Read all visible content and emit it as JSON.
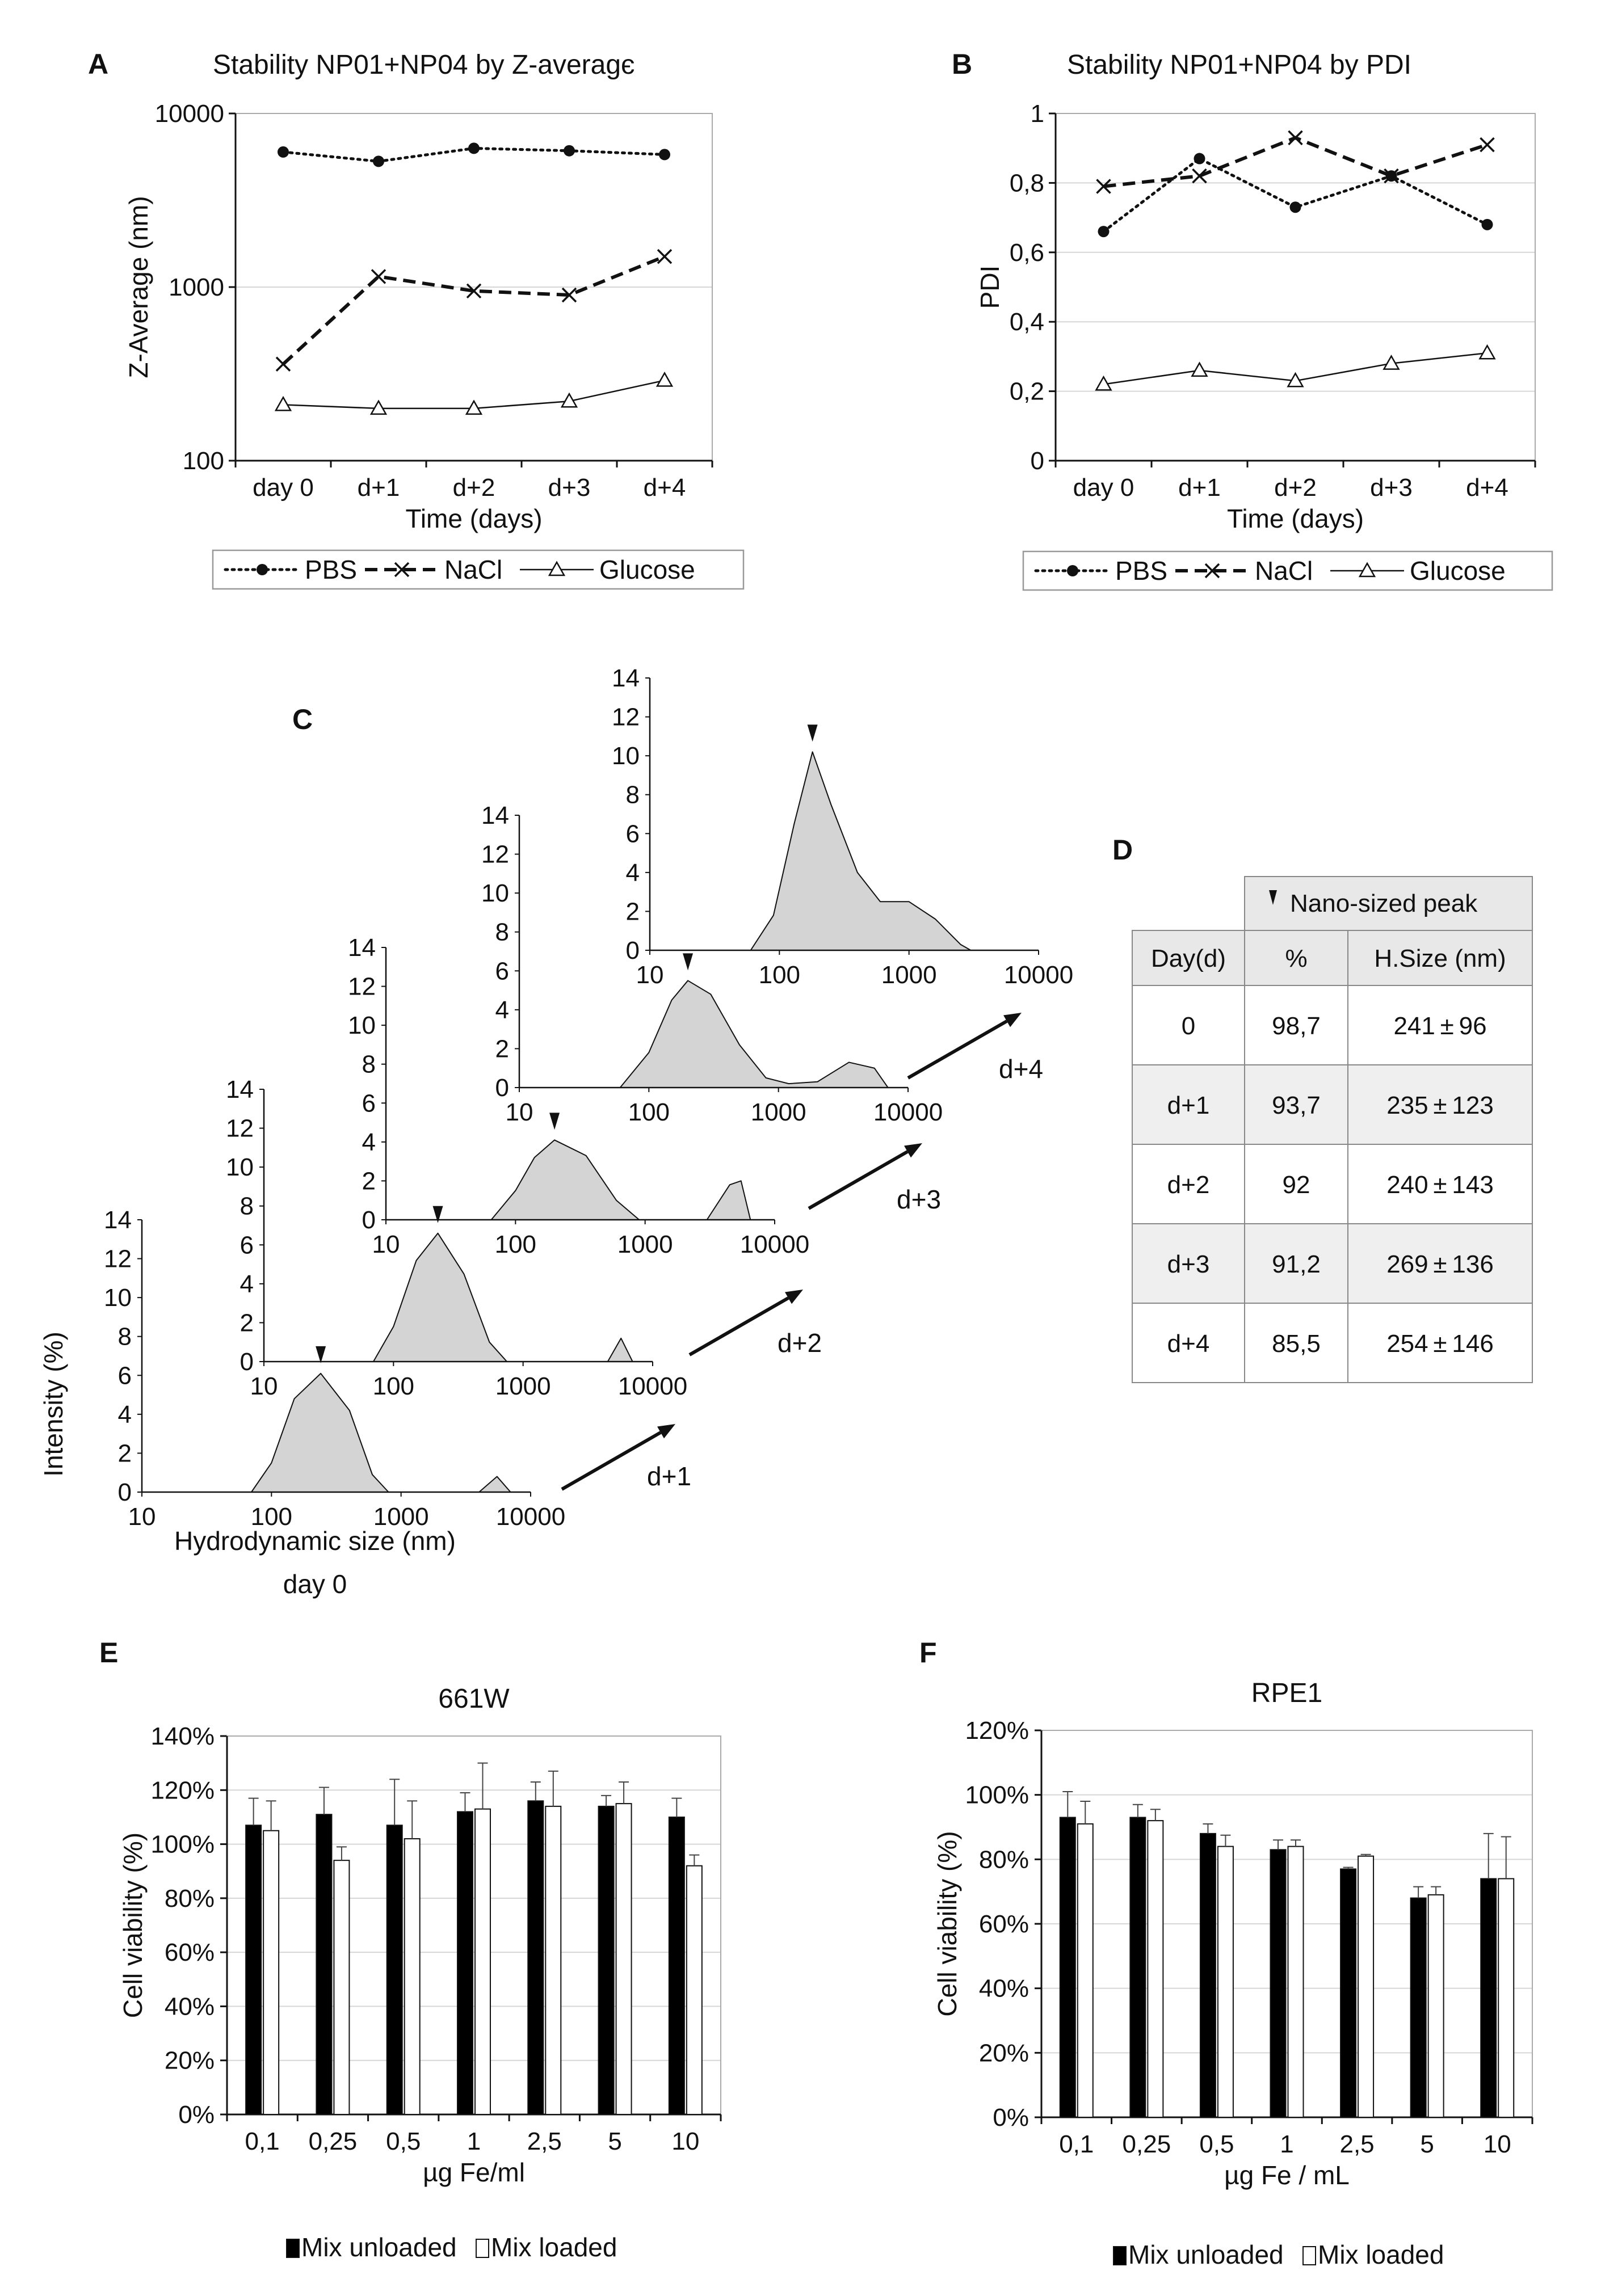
{
  "colors": {
    "ink": "#111111",
    "peak_fill": "#d4d4d4",
    "grid": "#d6d6d6",
    "table_header": "#e8e8e8",
    "bar_dark": "#000000",
    "bar_light": "#ffffff"
  },
  "panels": {
    "A": {
      "letter": "A",
      "title": "Stability NP01+NP04 by Z-averagє"
    },
    "B": {
      "letter": "B",
      "title": "Stability NP01+NP04 by PDI"
    },
    "C": {
      "letter": "C",
      "ylabel": "Intensity (%)",
      "xlabel": "Hydrodynamic size (nm)",
      "day_labels": [
        "day 0",
        "d+1",
        "d+2",
        "d+3",
        "d+4"
      ]
    },
    "D": {
      "letter": "D",
      "group_header": "Nano-sized peak",
      "col_headers": [
        "Day(d)",
        "%",
        "H.Size (nm)"
      ],
      "rows": [
        [
          "0",
          "98,7",
          "241 ± 96"
        ],
        [
          "d+1",
          "93,7",
          "235 ± 123"
        ],
        [
          "d+2",
          "92",
          "240 ± 143"
        ],
        [
          "d+3",
          "91,2",
          "269 ± 136"
        ],
        [
          "d+4",
          "85,5",
          "254 ± 146"
        ]
      ]
    },
    "E": {
      "letter": "E",
      "title": "661W"
    },
    "F": {
      "letter": "F",
      "title": "RPE1"
    }
  },
  "chart_data": [
    {
      "id": "A",
      "type": "line",
      "title": "Stability NP01+NP04 by Z-averagє",
      "xlabel": "Time (days)",
      "ylabel": "Z-Average (nm)",
      "yscale": "log",
      "ylim": [
        100,
        10000
      ],
      "yticks": [
        "100",
        "1000",
        "10000"
      ],
      "categories": [
        "day 0",
        "d+1",
        "d+2",
        "d+3",
        "d+4"
      ],
      "series": [
        {
          "name": "PBS",
          "values": [
            6000,
            5300,
            6300,
            6100,
            5800
          ]
        },
        {
          "name": "NaCl",
          "values": [
            360,
            1150,
            950,
            900,
            1500
          ]
        },
        {
          "name": "Glucose",
          "values": [
            210,
            200,
            200,
            220,
            290
          ]
        }
      ],
      "legend": [
        "PBS",
        "NaCl",
        "Glucose"
      ]
    },
    {
      "id": "B",
      "type": "line",
      "title": "Stability NP01+NP04 by PDI",
      "xlabel": "Time (days)",
      "ylabel": "PDI",
      "ylim": [
        0,
        1
      ],
      "yticks": [
        "0",
        "0,2",
        "0,4",
        "0,6",
        "0,8",
        "1"
      ],
      "categories": [
        "day 0",
        "d+1",
        "d+2",
        "d+3",
        "d+4"
      ],
      "series": [
        {
          "name": "PBS",
          "values": [
            0.66,
            0.87,
            0.73,
            0.82,
            0.68
          ]
        },
        {
          "name": "NaCl",
          "values": [
            0.79,
            0.82,
            0.93,
            0.82,
            0.91
          ]
        },
        {
          "name": "Glucose",
          "values": [
            0.22,
            0.26,
            0.23,
            0.28,
            0.31
          ]
        }
      ],
      "legend": [
        "PBS",
        "NaCl",
        "Glucose"
      ]
    },
    {
      "id": "C",
      "type": "area",
      "xlabel": "Hydrodynamic size (nm)",
      "ylabel": "Intensity (%)",
      "xscale": "log",
      "xlim": [
        10,
        10000
      ],
      "ylim": [
        0,
        14
      ],
      "xticks": [
        "10",
        "100",
        "1000",
        "10000"
      ],
      "yticks": [
        "0",
        "2",
        "4",
        "6",
        "8",
        "10",
        "12",
        "14"
      ],
      "series": [
        {
          "name": "day 0",
          "x": [
            70,
            100,
            150,
            240,
            400,
            600,
            800,
            4000,
            5500,
            7000
          ],
          "y": [
            0,
            1.5,
            4.8,
            6.1,
            4.2,
            0.9,
            0,
            0,
            0.8,
            0
          ]
        },
        {
          "name": "d+1",
          "x": [
            70,
            100,
            150,
            220,
            350,
            550,
            750,
            4500,
            5700,
            7000
          ],
          "y": [
            0,
            1.8,
            5.2,
            6.6,
            4.5,
            1,
            0,
            0,
            1.2,
            0
          ]
        },
        {
          "name": "d+2",
          "x": [
            65,
            100,
            140,
            200,
            350,
            600,
            900,
            3000,
            4500,
            5500,
            6500
          ],
          "y": [
            0,
            1.5,
            3.2,
            4.1,
            3.3,
            1,
            0,
            0,
            1.8,
            2,
            0
          ]
        },
        {
          "name": "d+3",
          "x": [
            60,
            100,
            150,
            200,
            300,
            500,
            800,
            1200,
            2000,
            3500,
            5500,
            7000
          ],
          "y": [
            0,
            1.8,
            4.5,
            5.5,
            4.8,
            2.2,
            0.5,
            0.2,
            0.3,
            1.3,
            1,
            0
          ]
        },
        {
          "name": "d+4",
          "x": [
            60,
            90,
            130,
            180,
            250,
            400,
            600,
            1000,
            1600,
            2500,
            3000
          ],
          "y": [
            0,
            1.8,
            6.5,
            10.2,
            7.5,
            4,
            2.5,
            2.5,
            1.6,
            0.3,
            0
          ]
        }
      ]
    },
    {
      "id": "E",
      "type": "bar",
      "title": "661W",
      "xlabel": "µg Fe/ml",
      "ylabel": "Cell viability (%)",
      "ylim": [
        0,
        140
      ],
      "yticks": [
        "0%",
        "20%",
        "40%",
        "60%",
        "80%",
        "100%",
        "120%",
        "140%"
      ],
      "categories": [
        "0,1",
        "0,25",
        "0,5",
        "1",
        "2,5",
        "5",
        "10"
      ],
      "series": [
        {
          "name": "Mix unloaded",
          "values": [
            107,
            111,
            107,
            112,
            116,
            114,
            110
          ],
          "errors": [
            10,
            10,
            17,
            7,
            7,
            4,
            7
          ]
        },
        {
          "name": "Mix loaded",
          "values": [
            105,
            94,
            102,
            113,
            114,
            115,
            92
          ],
          "errors": [
            11,
            5,
            14,
            17,
            13,
            8,
            4
          ]
        }
      ],
      "legend": [
        "Mix unloaded",
        "Mix loaded"
      ]
    },
    {
      "id": "F",
      "type": "bar",
      "title": "RPE1",
      "xlabel": "µg Fe / mL",
      "ylabel": "Cell viability (%)",
      "ylim": [
        0,
        120
      ],
      "yticks": [
        "0%",
        "20%",
        "40%",
        "60%",
        "80%",
        "100%",
        "120%"
      ],
      "categories": [
        "0,1",
        "0,25",
        "0,5",
        "1",
        "2,5",
        "5",
        "10"
      ],
      "series": [
        {
          "name": "Mix unloaded",
          "values": [
            93,
            93,
            88,
            83,
            77,
            68,
            74
          ],
          "errors": [
            8,
            4,
            3,
            3,
            0.5,
            3.5,
            14
          ]
        },
        {
          "name": "Mix loaded",
          "values": [
            91,
            92,
            84,
            84,
            81,
            69,
            74
          ],
          "errors": [
            7,
            3.5,
            3.5,
            2,
            0.5,
            2.5,
            13
          ]
        }
      ],
      "legend": [
        "Mix unloaded",
        "Mix loaded"
      ]
    }
  ]
}
